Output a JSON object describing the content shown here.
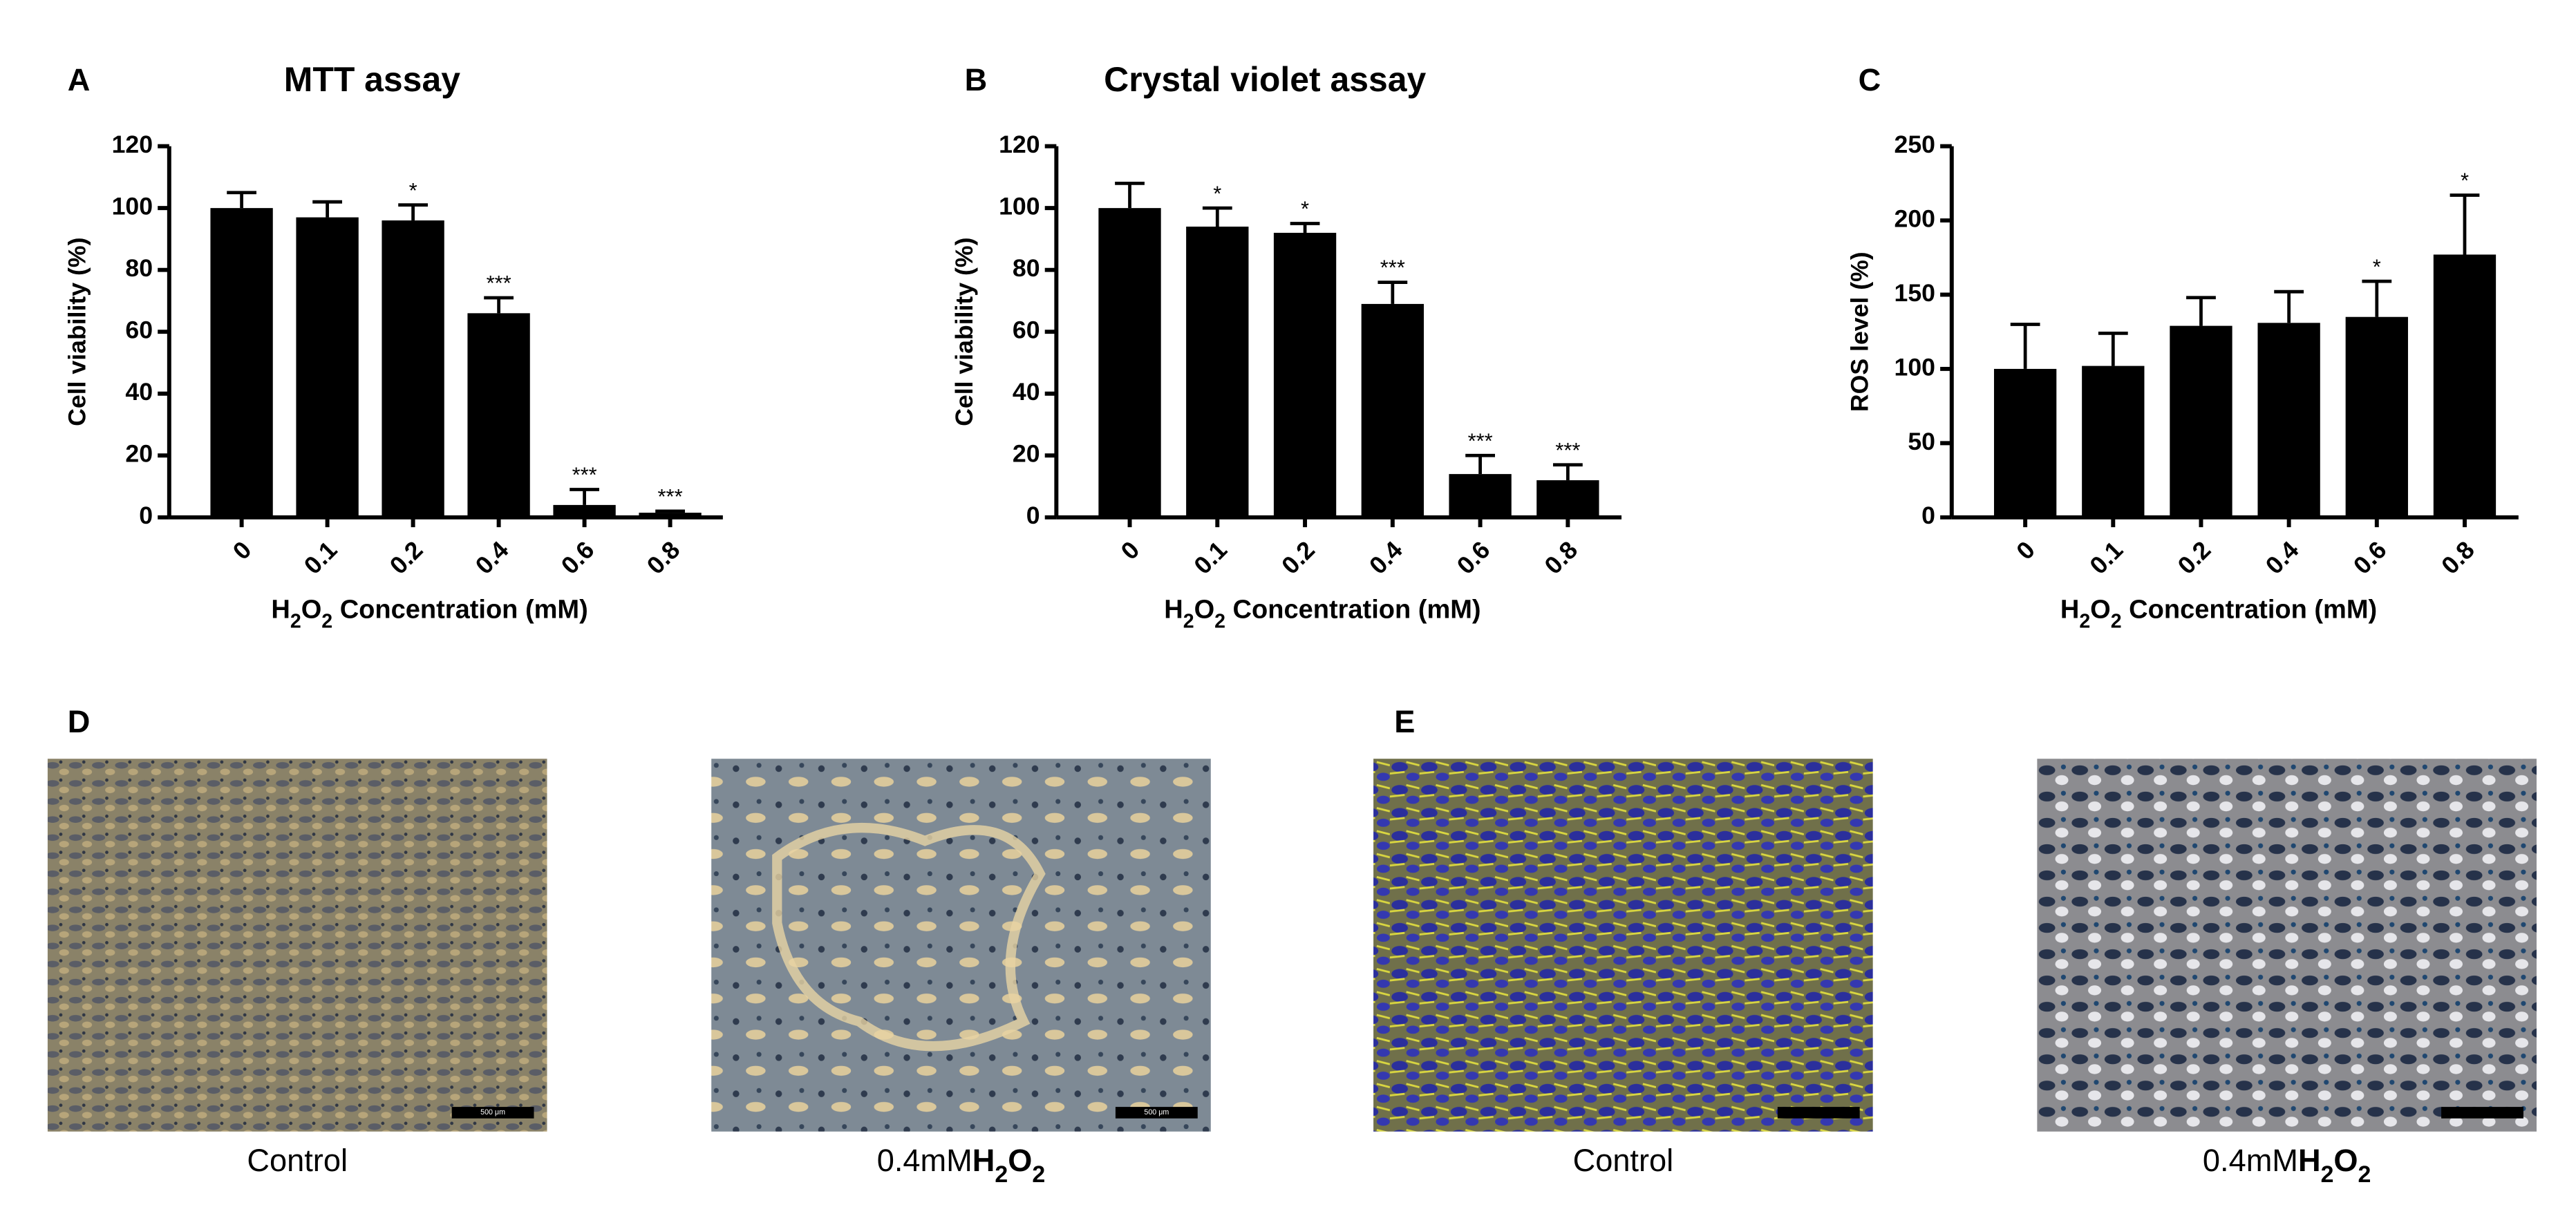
{
  "chart_data": [
    {
      "type": "bar",
      "letter": "A",
      "title": "MTT assay",
      "y_label": "Cell viability (%)",
      "x_label": "H2O2 Concentration (mM)",
      "categories": [
        "0",
        "0.1",
        "0.2",
        "0.4",
        "0.6",
        "0.8"
      ],
      "values": [
        100,
        97,
        96,
        66,
        4,
        1.5
      ],
      "errors": [
        5,
        5,
        5,
        5,
        5,
        0.5
      ],
      "significance": [
        null,
        null,
        "*",
        "***",
        "***",
        "***"
      ],
      "ylim": [
        0,
        120
      ],
      "yticks": [
        0,
        20,
        40,
        60,
        80,
        100,
        120
      ],
      "color": "#000000"
    },
    {
      "type": "bar",
      "letter": "B",
      "title": "Crystal violet assay",
      "y_label": "Cell viability (%)",
      "x_label": "H2O2 Concentration (mM)",
      "categories": [
        "0",
        "0.1",
        "0.2",
        "0.4",
        "0.6",
        "0.8"
      ],
      "values": [
        100,
        94,
        92,
        69,
        14,
        12
      ],
      "errors": [
        8,
        6,
        3,
        7,
        6,
        5
      ],
      "significance": [
        null,
        "*",
        "*",
        "***",
        "***",
        "***"
      ],
      "ylim": [
        0,
        120
      ],
      "yticks": [
        0,
        20,
        40,
        60,
        80,
        100,
        120
      ],
      "color": "#000000"
    },
    {
      "type": "bar",
      "letter": "C",
      "y_label": "ROS level (%)",
      "x_label": "H2O2 Concentration (mM)",
      "categories": [
        "0",
        "0.1",
        "0.2",
        "0.4",
        "0.6",
        "0.8"
      ],
      "values": [
        100,
        102,
        129,
        131,
        135,
        177
      ],
      "errors": [
        30,
        22,
        19,
        21,
        24,
        40
      ],
      "significance": [
        null,
        null,
        null,
        null,
        "*",
        "*"
      ],
      "ylim": [
        0,
        250
      ],
      "yticks": [
        0,
        50,
        100,
        150,
        200,
        250
      ],
      "color": "#000000"
    }
  ],
  "image_panels": [
    {
      "letter": "D",
      "images": [
        {
          "caption": "Control",
          "scale_label": "500 μm"
        },
        {
          "caption": "0.4mM",
          "caption_bold": "H2O2",
          "scale_label": "500 μm"
        }
      ]
    },
    {
      "letter": "E",
      "images": [
        {
          "caption": "Control"
        },
        {
          "caption": "0.4mM",
          "caption_bold": "H2O2"
        }
      ]
    }
  ]
}
